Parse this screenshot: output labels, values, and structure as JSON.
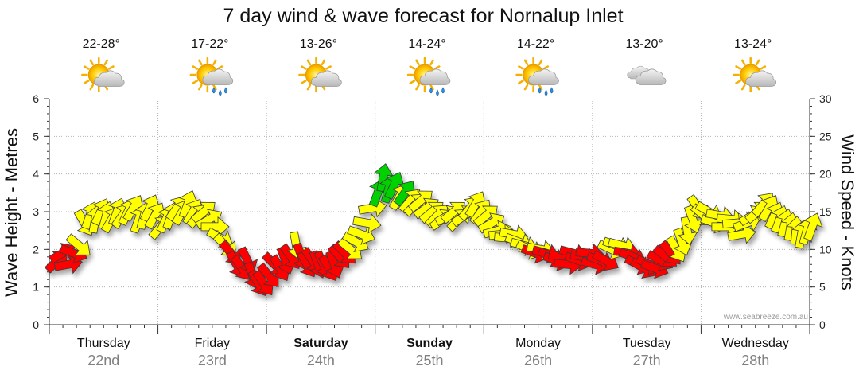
{
  "chart_data": {
    "type": "line",
    "title": "7 day wind & wave forecast for Nornalup Inlet",
    "ylabel_left": "Wave Height - Metres",
    "ylabel_right": "Wind Speed - Knots",
    "ylim_left": [
      0,
      6
    ],
    "ylim_right": [
      0,
      30
    ],
    "yticks_left": [
      "0",
      "1",
      "2",
      "3",
      "4",
      "5",
      "6"
    ],
    "yticks_right": [
      "0",
      "5",
      "10",
      "15",
      "20",
      "25",
      "30"
    ],
    "grid": true,
    "watermark": "www.seabreeze.com.au",
    "days": [
      {
        "name": "Thursday",
        "date": "22nd",
        "bold": false,
        "temp": "22-28°",
        "weather": "partly-cloudy-icon"
      },
      {
        "name": "Friday",
        "date": "23rd",
        "bold": false,
        "temp": "17-22°",
        "weather": "showers-icon"
      },
      {
        "name": "Saturday",
        "date": "24th",
        "bold": true,
        "temp": "13-26°",
        "weather": "partly-cloudy-icon"
      },
      {
        "name": "Sunday",
        "date": "25th",
        "bold": true,
        "temp": "14-24°",
        "weather": "showers-icon"
      },
      {
        "name": "Monday",
        "date": "26th",
        "bold": false,
        "temp": "14-22°",
        "weather": "showers-icon"
      },
      {
        "name": "Tuesday",
        "date": "27th",
        "bold": false,
        "temp": "13-20°",
        "weather": "cloudy-icon"
      },
      {
        "name": "Wednesday",
        "date": "28th",
        "bold": false,
        "temp": "13-24°",
        "weather": "partly-cloudy-icon"
      }
    ],
    "x_range_days": [
      0,
      7
    ],
    "series": [
      {
        "name": "Wind",
        "unit": "knots",
        "x_days": [
          0.0,
          0.05,
          0.1,
          0.15,
          0.2,
          0.25,
          0.3,
          0.35,
          0.4,
          0.45,
          0.5,
          0.55,
          0.6,
          0.65,
          0.7,
          0.75,
          0.8,
          0.85,
          0.9,
          0.95,
          1.0,
          1.05,
          1.1,
          1.15,
          1.2,
          1.25,
          1.3,
          1.35,
          1.4,
          1.45,
          1.5,
          1.55,
          1.6,
          1.65,
          1.7,
          1.75,
          1.8,
          1.85,
          1.9,
          1.95,
          2.0,
          2.05,
          2.1,
          2.15,
          2.2,
          2.25,
          2.3,
          2.35,
          2.4,
          2.45,
          2.5,
          2.55,
          2.6,
          2.65,
          2.7,
          2.75,
          2.8,
          2.85,
          2.9,
          2.95,
          3.0,
          3.05,
          3.1,
          3.15,
          3.2,
          3.25,
          3.3,
          3.35,
          3.4,
          3.45,
          3.5,
          3.55,
          3.6,
          3.65,
          3.7,
          3.75,
          3.8,
          3.85,
          3.9,
          3.95,
          4.0,
          4.05,
          4.1,
          4.15,
          4.2,
          4.25,
          4.3,
          4.35,
          4.4,
          4.45,
          4.5,
          4.55,
          4.6,
          4.65,
          4.7,
          4.75,
          4.8,
          4.85,
          4.9,
          4.95,
          5.0,
          5.05,
          5.1,
          5.15,
          5.2,
          5.25,
          5.3,
          5.35,
          5.4,
          5.45,
          5.5,
          5.55,
          5.6,
          5.65,
          5.7,
          5.75,
          5.8,
          5.85,
          5.9,
          5.95,
          6.0,
          6.05,
          6.1,
          6.15,
          6.2,
          6.25,
          6.3,
          6.35,
          6.4,
          6.45,
          6.5,
          6.55,
          6.6,
          6.65,
          6.7,
          6.75,
          6.8,
          6.85,
          6.9,
          6.95
        ],
        "values": [
          8.5,
          9.5,
          8.0,
          9.5,
          10.5,
          13.5,
          14.5,
          14.0,
          15.0,
          14.5,
          14.0,
          15.0,
          14.5,
          15.0,
          15.5,
          14.0,
          14.5,
          15.5,
          14.5,
          13.0,
          14.0,
          14.5,
          15.5,
          15.0,
          16.0,
          15.0,
          14.5,
          15.0,
          14.0,
          13.0,
          11.5,
          10.5,
          9.5,
          8.0,
          7.5,
          8.5,
          6.5,
          5.5,
          5.5,
          6.5,
          8.0,
          7.5,
          8.5,
          9.0,
          10.5,
          9.0,
          8.0,
          8.5,
          8.0,
          8.0,
          7.5,
          8.0,
          9.0,
          9.5,
          10.0,
          11.0,
          12.0,
          13.5,
          15.5,
          17.5,
          19.5,
          18.0,
          18.5,
          17.0,
          17.5,
          16.5,
          16.0,
          16.5,
          15.5,
          15.0,
          14.5,
          14.0,
          14.5,
          15.0,
          14.0,
          14.5,
          15.5,
          16.0,
          15.0,
          14.5,
          13.5,
          12.5,
          12.0,
          11.5,
          12.0,
          11.0,
          10.5,
          10.0,
          9.5,
          10.0,
          9.5,
          9.0,
          8.5,
          9.0,
          8.0,
          9.5,
          8.5,
          9.0,
          9.5,
          8.0,
          8.5,
          8.5,
          10.0,
          10.5,
          10.5,
          9.5,
          9.0,
          8.0,
          7.5,
          8.0,
          7.5,
          8.5,
          9.0,
          9.5,
          10.0,
          11.0,
          12.5,
          14.0,
          15.5,
          14.5,
          15.0,
          13.5,
          14.5,
          13.0,
          14.0,
          13.5,
          12.0,
          13.5,
          14.5,
          15.0,
          16.0,
          15.5,
          14.5,
          14.0,
          13.5,
          13.0,
          12.5,
          12.0,
          12.5,
          13.0
        ],
        "directions_deg_to": [
          45,
          60,
          80,
          110,
          130,
          150,
          20,
          10,
          25,
          15,
          30,
          20,
          35,
          25,
          30,
          20,
          15,
          25,
          30,
          40,
          25,
          20,
          35,
          30,
          20,
          30,
          40,
          50,
          60,
          90,
          120,
          135,
          140,
          150,
          145,
          155,
          160,
          150,
          145,
          140,
          135,
          150,
          160,
          145,
          170,
          160,
          150,
          145,
          160,
          155,
          150,
          160,
          140,
          135,
          130,
          120,
          110,
          100,
          80,
          20,
          10,
          15,
          25,
          30,
          35,
          40,
          45,
          50,
          55,
          50,
          45,
          55,
          60,
          50,
          45,
          55,
          40,
          30,
          35,
          50,
          60,
          75,
          85,
          95,
          100,
          110,
          105,
          115,
          110,
          100,
          105,
          115,
          110,
          100,
          95,
          105,
          110,
          100,
          95,
          105,
          110,
          120,
          115,
          110,
          105,
          100,
          110,
          115,
          120,
          115,
          110,
          120,
          130,
          140,
          150,
          160,
          170,
          160,
          145,
          130,
          120,
          110,
          100,
          90,
          95,
          85,
          80,
          70,
          60,
          50,
          40,
          30,
          25,
          20,
          15,
          10,
          5,
          10,
          15,
          20
        ],
        "colors": [
          {
            "range_knots": "under 10",
            "color": "#ff0000"
          },
          {
            "range_knots": "10 to 17",
            "color": "#ffff00"
          },
          {
            "range_knots": "over 17",
            "color": "#00d200"
          }
        ]
      }
    ]
  },
  "colors": {
    "arrow_outline": "#3a3a3a",
    "grid": "#b4b4b4",
    "axis": "#333333",
    "date_text": "#808080",
    "watermark": "#9a9a9a"
  }
}
